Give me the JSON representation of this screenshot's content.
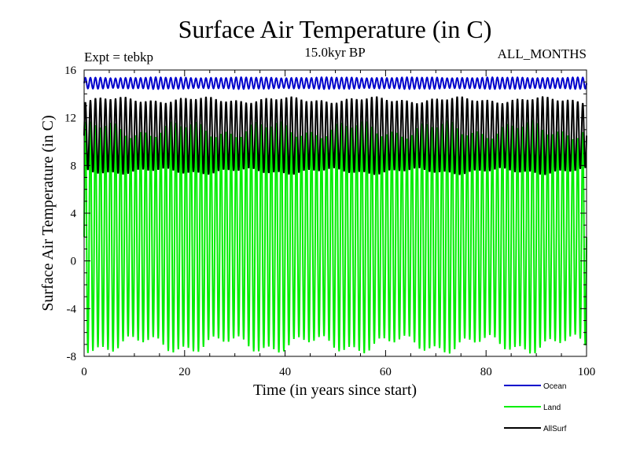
{
  "chart_data": {
    "type": "line",
    "title": "Surface Air Temperature (in C)",
    "subtitle_left": "Expt = tebkp",
    "subtitle_center": "15.0kyr BP",
    "subtitle_right": "ALL_MONTHS",
    "xlabel": "Time (in years since start)",
    "ylabel": "Surface Air Temperature (in C)",
    "xlim": [
      0,
      100
    ],
    "ylim": [
      -8,
      16
    ],
    "xticks": [
      0,
      20,
      40,
      60,
      80,
      100
    ],
    "yticks": [
      -8,
      -4,
      0,
      4,
      8,
      12,
      16
    ],
    "legend_position": "bottom-right",
    "series": [
      {
        "name": "Ocean",
        "color": "#0000cc",
        "mean": 14.9,
        "amplitude": 0.45,
        "cycles_per_year": 1,
        "note": "seasonal cycle, approx 14.4 to 15.4"
      },
      {
        "name": "Land",
        "color": "#00ee00",
        "mean": 2.0,
        "amplitude": 9.0,
        "cycles_per_year": 1,
        "note": "seasonal cycle, approx -7.5 to 11.0"
      },
      {
        "name": "AllSurf",
        "color": "#000000",
        "mean": 10.5,
        "amplitude": 3.0,
        "cycles_per_year": 1,
        "note": "seasonal cycle, approx 7.5 to 13.8"
      }
    ]
  }
}
